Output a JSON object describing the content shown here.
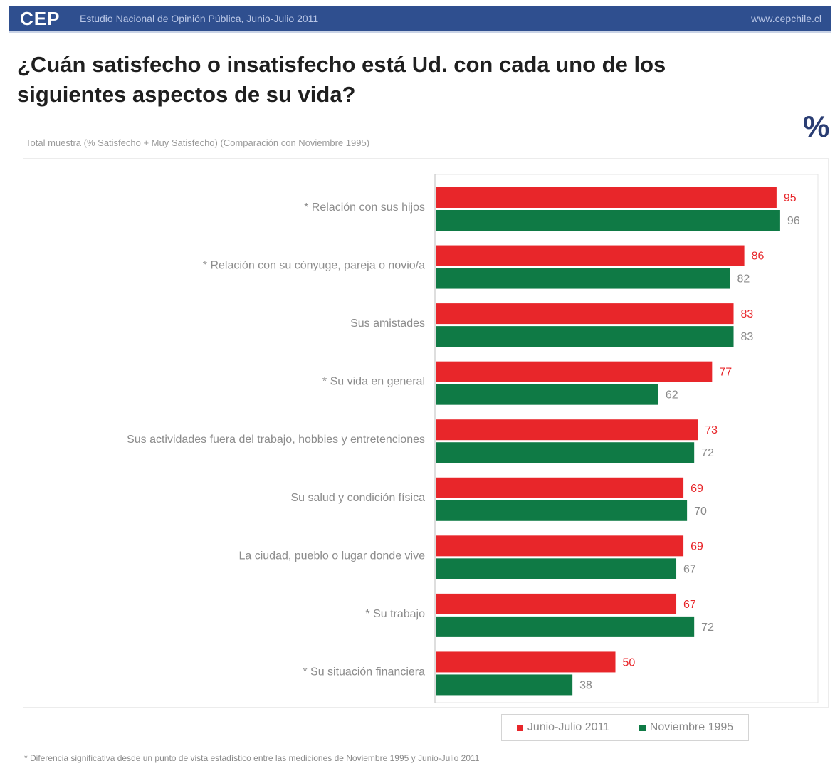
{
  "header": {
    "brand": "CEP",
    "subtitle": "Estudio Nacional de Opinión Pública, Junio-Julio 2011",
    "url": "www.cepchile.cl"
  },
  "title": "¿Cuán satisfecho o insatisfecho está Ud. con cada uno de los siguientes aspectos de su vida?",
  "percent_symbol": "%",
  "note": "Total muestra (% Satisfecho + Muy Satisfecho) (Comparación con Noviembre 1995)",
  "footnote": "* Diferencia significativa desde un punto de vista estadístico entre las mediciones de Noviembre 1995 y Junio-Julio 2011",
  "colors": {
    "series1": "#e8262a",
    "series2": "#0f7a45"
  },
  "chart_data": {
    "type": "bar",
    "orientation": "horizontal",
    "xlim": [
      0,
      100
    ],
    "categories": [
      "* Relación con sus hijos",
      "* Relación con su cónyuge, pareja o novio/a",
      "Sus amistades",
      "* Su vida en general",
      "Sus actividades fuera del trabajo, hobbies y entretenciones",
      "Su salud y condición física",
      "La ciudad, pueblo o lugar donde vive",
      "* Su trabajo",
      "* Su situación financiera"
    ],
    "series": [
      {
        "name": "Junio-Julio 2011",
        "values": [
          95,
          86,
          83,
          77,
          73,
          69,
          69,
          67,
          50
        ]
      },
      {
        "name": "Noviembre 1995",
        "values": [
          96,
          82,
          83,
          62,
          72,
          70,
          67,
          72,
          38
        ]
      }
    ],
    "legend_position": "bottom-right"
  }
}
